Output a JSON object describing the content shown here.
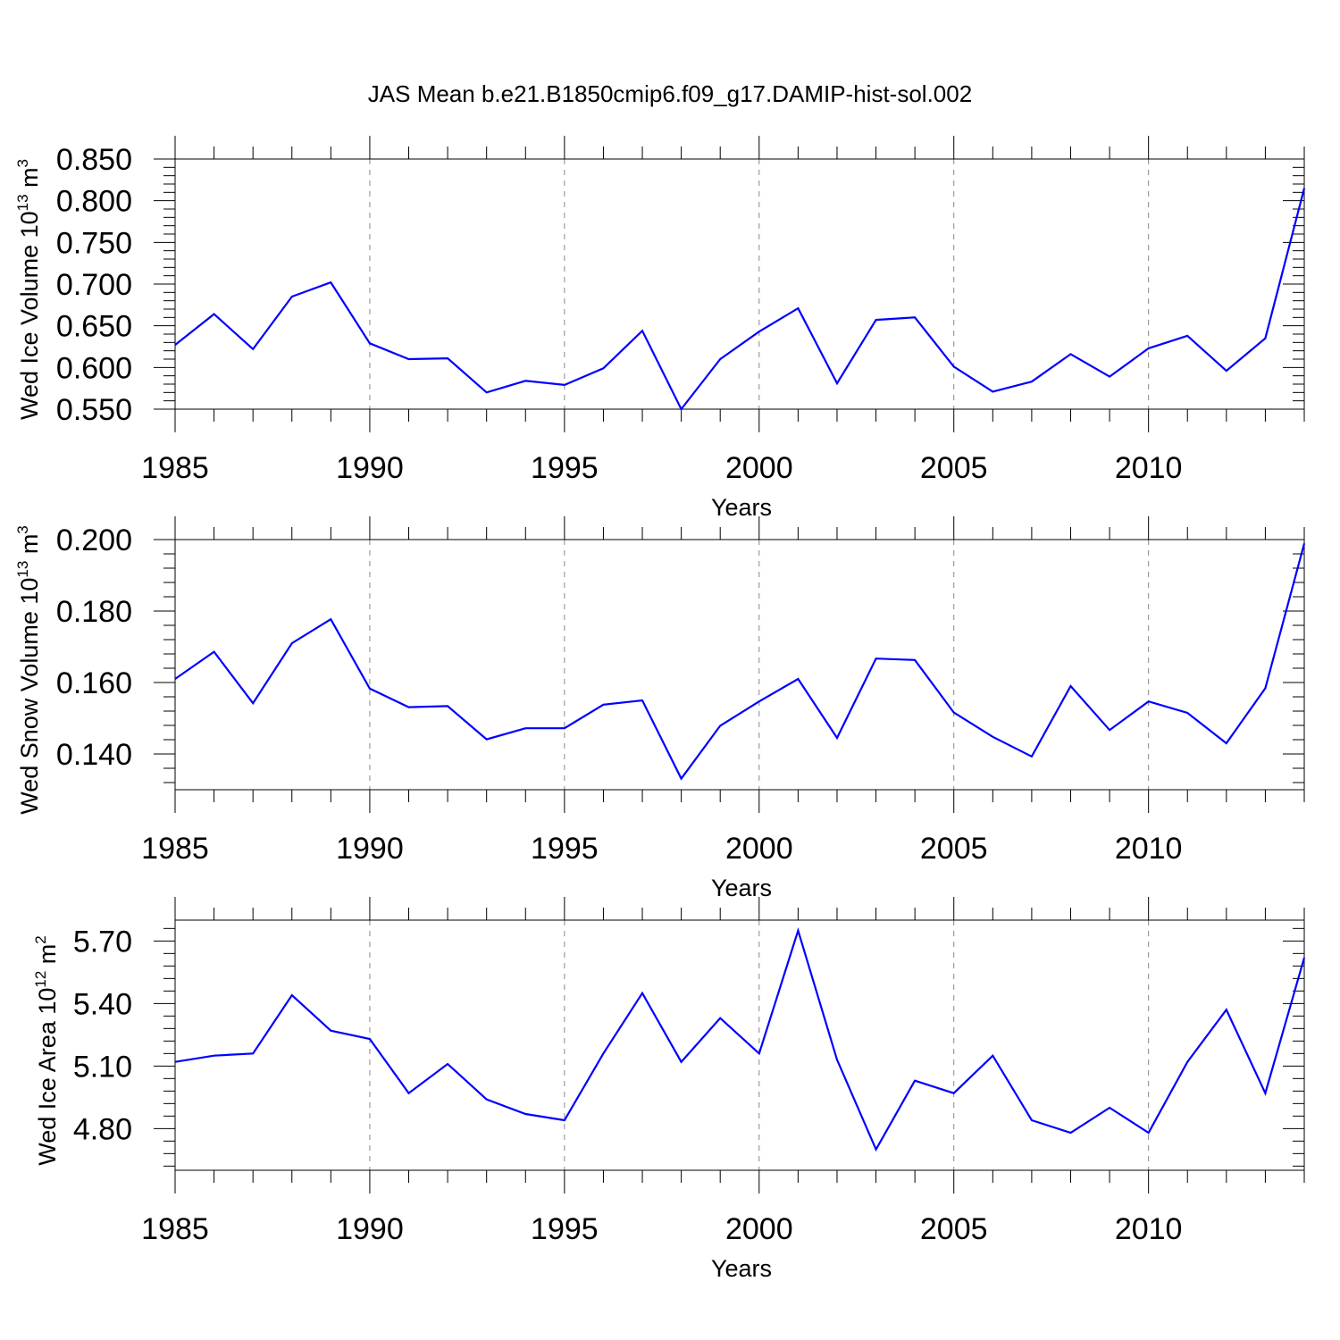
{
  "figure": {
    "title": "JAS Mean b.e21.B1850cmip6.f09_g17.DAMIP-hist-sol.002",
    "line_color": "#0000ff",
    "grid_color": "#888888"
  },
  "chart_data": [
    {
      "type": "line",
      "title": "",
      "xlabel": "Years",
      "ylabel": {
        "main": "Wed Ice Volume 10",
        "exp1": "13",
        "unit": " m",
        "exp2": "3"
      },
      "xlim": [
        1985,
        2014
      ],
      "ylim": [
        0.55,
        0.85
      ],
      "x_ticks": [
        1985,
        1990,
        1995,
        2000,
        2005,
        2010
      ],
      "x_tick_labels": [
        "1985",
        "1990",
        "1995",
        "2000",
        "2005",
        "2010"
      ],
      "y_ticks": [
        0.55,
        0.6,
        0.65,
        0.7,
        0.75,
        0.8,
        0.85
      ],
      "y_tick_labels": [
        "0.550",
        "0.600",
        "0.650",
        "0.700",
        "0.750",
        "0.800",
        "0.850"
      ],
      "grid": "vertical dashed at major x ticks",
      "series": [
        {
          "name": "Wed Ice Volume",
          "x": [
            1985,
            1986,
            1987,
            1988,
            1989,
            1990,
            1991,
            1992,
            1993,
            1994,
            1995,
            1996,
            1997,
            1998,
            1999,
            2000,
            2001,
            2002,
            2003,
            2004,
            2005,
            2006,
            2007,
            2008,
            2009,
            2010,
            2011,
            2012,
            2013,
            2014
          ],
          "values": [
            0.627,
            0.664,
            0.622,
            0.685,
            0.702,
            0.629,
            0.61,
            0.611,
            0.57,
            0.584,
            0.579,
            0.599,
            0.644,
            0.55,
            0.61,
            0.643,
            0.671,
            0.581,
            0.657,
            0.66,
            0.601,
            0.571,
            0.583,
            0.616,
            0.589,
            0.623,
            0.638,
            0.596,
            0.635,
            0.815
          ]
        }
      ]
    },
    {
      "type": "line",
      "title": "",
      "xlabel": "Years",
      "ylabel": {
        "main": "Wed Snow Volume 10",
        "exp1": "13",
        "unit": " m",
        "exp2": "3"
      },
      "xlim": [
        1985,
        2014
      ],
      "ylim": [
        0.13,
        0.2
      ],
      "x_ticks": [
        1985,
        1990,
        1995,
        2000,
        2005,
        2010
      ],
      "x_tick_labels": [
        "1985",
        "1990",
        "1995",
        "2000",
        "2005",
        "2010"
      ],
      "y_ticks": [
        0.14,
        0.16,
        0.18,
        0.2
      ],
      "y_tick_labels": [
        "0.140",
        "0.160",
        "0.180",
        "0.200"
      ],
      "grid": "vertical dashed at major x ticks",
      "series": [
        {
          "name": "Wed Snow Volume",
          "x": [
            1985,
            1986,
            1987,
            1988,
            1989,
            1990,
            1991,
            1992,
            1993,
            1994,
            1995,
            1996,
            1997,
            1998,
            1999,
            2000,
            2001,
            2002,
            2003,
            2004,
            2005,
            2006,
            2007,
            2008,
            2009,
            2010,
            2011,
            2012,
            2013,
            2014
          ],
          "values": [
            0.161,
            0.1686,
            0.1542,
            0.171,
            0.1777,
            0.1583,
            0.1531,
            0.1534,
            0.1441,
            0.1472,
            0.1472,
            0.1538,
            0.155,
            0.1331,
            0.1479,
            0.1547,
            0.161,
            0.1445,
            0.1667,
            0.1663,
            0.1516,
            0.1448,
            0.1393,
            0.159,
            0.1467,
            0.1547,
            0.1515,
            0.143,
            0.1584,
            0.1989
          ]
        }
      ]
    },
    {
      "type": "line",
      "title": "",
      "xlabel": "Years",
      "ylabel": {
        "main": "Wed Ice Area 10",
        "exp1": "12",
        "unit": " m",
        "exp2": "2"
      },
      "xlim": [
        1985,
        2014
      ],
      "ylim": [
        4.6,
        5.8
      ],
      "x_ticks": [
        1985,
        1990,
        1995,
        2000,
        2005,
        2010
      ],
      "x_tick_labels": [
        "1985",
        "1990",
        "1995",
        "2000",
        "2005",
        "2010"
      ],
      "y_ticks": [
        4.8,
        5.1,
        5.4,
        5.7
      ],
      "y_tick_labels": [
        "4.80",
        "5.10",
        "5.40",
        "5.70"
      ],
      "grid": "vertical dashed at major x ticks",
      "series": [
        {
          "name": "Wed Ice Area",
          "x": [
            1985,
            1986,
            1987,
            1988,
            1989,
            1990,
            1991,
            1992,
            1993,
            1994,
            1995,
            1996,
            1997,
            1998,
            1999,
            2000,
            2001,
            2002,
            2003,
            2004,
            2005,
            2006,
            2007,
            2008,
            2009,
            2010,
            2011,
            2012,
            2013,
            2014
          ],
          "values": [
            5.12,
            5.15,
            5.16,
            5.44,
            5.27,
            5.23,
            4.97,
            5.11,
            4.94,
            4.87,
            4.84,
            5.16,
            5.45,
            5.12,
            5.33,
            5.16,
            5.75,
            5.13,
            4.7,
            5.03,
            4.97,
            5.15,
            4.84,
            4.78,
            4.9,
            4.78,
            5.12,
            5.37,
            4.97,
            5.62
          ]
        }
      ]
    }
  ]
}
